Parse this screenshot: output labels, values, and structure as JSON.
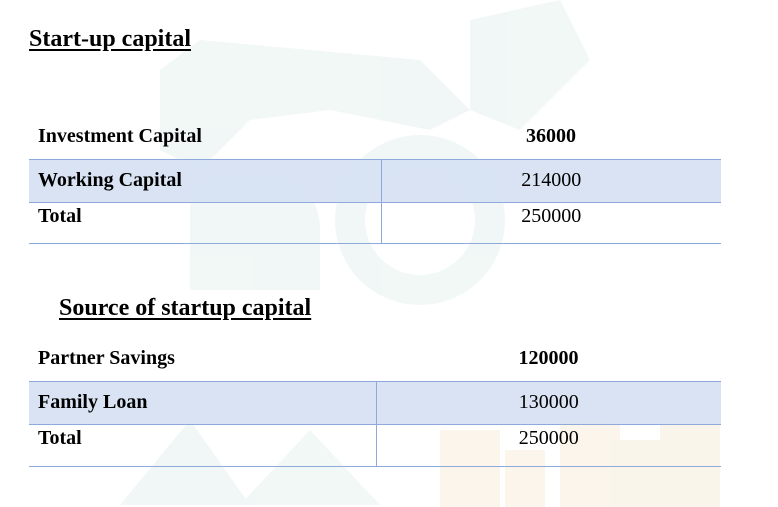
{
  "startup": {
    "heading": "Start-up capital",
    "rows": [
      {
        "label": "Investment Capital",
        "value": "36000"
      },
      {
        "label": "Working Capital",
        "value": "214000"
      },
      {
        "label": "Total",
        "value": "250000"
      }
    ]
  },
  "source": {
    "heading": "Source of startup capital",
    "rows": [
      {
        "label": "Partner Savings",
        "value": "120000"
      },
      {
        "label": "Family Loan",
        "value": "130000"
      },
      {
        "label": "Total",
        "value": "250000"
      }
    ]
  },
  "colors": {
    "row_shade": "#d6e1f2",
    "rule": "#8eaadb"
  }
}
